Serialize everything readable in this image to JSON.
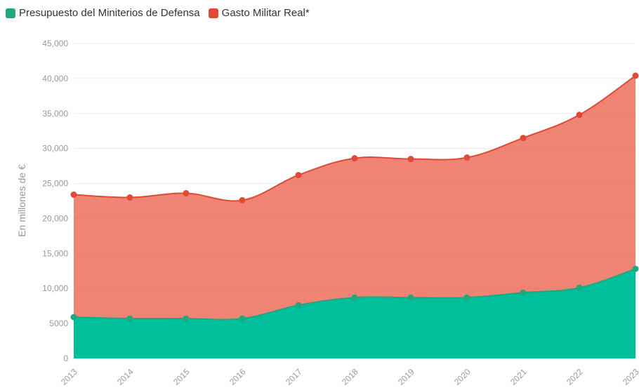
{
  "chart_data": {
    "type": "area",
    "y_label": "En millones de €",
    "categories": [
      "2013",
      "2014",
      "2015",
      "2016",
      "2017",
      "2018",
      "2019",
      "2020",
      "2021",
      "2022",
      "2023"
    ],
    "series": [
      {
        "name": "Presupuesto del Miniterios de Defensa",
        "color": "#00bf9a",
        "line_color": "#1fa77f",
        "values": [
          5900,
          5700,
          5700,
          5700,
          7600,
          8700,
          8700,
          8700,
          9400,
          10100,
          12800
        ]
      },
      {
        "name": "Gasto Militar Real*",
        "color": "#e8503a",
        "line_color": "#e04a35",
        "values": [
          23400,
          23000,
          23600,
          22600,
          26200,
          28600,
          28500,
          28700,
          31500,
          34800,
          40400
        ]
      }
    ],
    "ylim": [
      0,
      45000
    ],
    "yticks": [
      0,
      5000,
      {
        "value": 10000,
        "label": "10,000"
      },
      {
        "value": 15000,
        "label": "15,000"
      },
      {
        "value": 20000,
        "label": "20,000"
      },
      {
        "value": 25000,
        "label": "25,000"
      },
      {
        "value": 30000,
        "label": "30,000"
      },
      {
        "value": 35000,
        "label": "35,000"
      },
      {
        "value": 40000,
        "label": "40,000"
      },
      {
        "value": 45000,
        "label": "45,000"
      }
    ],
    "grid": true
  }
}
